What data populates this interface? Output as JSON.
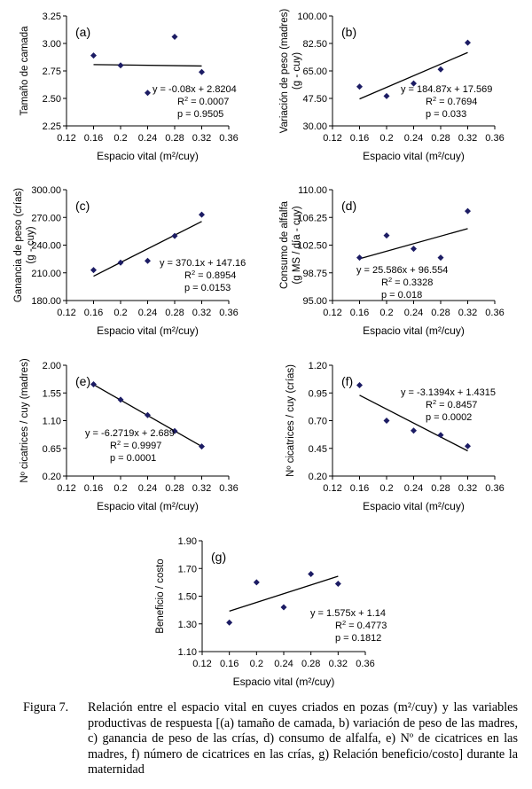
{
  "figure": {
    "caption_label": "Figura 7.",
    "caption_text": "Relación entre el espacio vital en cuyes criados en pozas (m²/cuy) y las variables productivas de respuesta [(a) tamaño de camada, b) variación de peso de las madres, c) ganancia de peso de las crías, d) consumo de alfalfa, e) Nº de cicatrices en las madres, f) número de cicatrices en las crías, g) Relación beneficio/costo] durante la maternidad"
  },
  "chart_data": [
    {
      "type": "scatter",
      "panel": "(a)",
      "ylabel": [
        "Tamaño de camada"
      ],
      "xlabel": "Espacio vital (m²/cuy)",
      "xlim": [
        0.12,
        0.36
      ],
      "xticks": [
        "0.12",
        "0.16",
        "0.2",
        "0.24",
        "0.28",
        "0.32",
        "0.36"
      ],
      "ylim": [
        2.25,
        3.25
      ],
      "yticks": [
        "2.25",
        "2.50",
        "2.75",
        "3.00",
        "3.25"
      ],
      "x": [
        0.16,
        0.2,
        0.24,
        0.28,
        0.32
      ],
      "y": [
        2.89,
        2.8,
        2.55,
        3.06,
        2.74
      ],
      "trend": {
        "slope": -0.08,
        "intercept": 2.8204
      },
      "annotation": [
        "y = -0.08x + 2.8204",
        "R2 = 0.0007",
        "p = 0.9505"
      ],
      "grid": false,
      "point_color": "#1c1c64"
    },
    {
      "type": "scatter",
      "panel": "(b)",
      "ylabel": [
        "Variación de peso (madres)",
        "(g - cuy)"
      ],
      "xlabel": "Espacio vital (m²/cuy)",
      "xlim": [
        0.12,
        0.36
      ],
      "xticks": [
        "0.12",
        "0.16",
        "0.2",
        "0.24",
        "0.28",
        "0.32",
        "0.36"
      ],
      "ylim": [
        30.0,
        100.0
      ],
      "yticks": [
        "30.00",
        "47.50",
        "65.00",
        "82.50",
        "100.00"
      ],
      "x": [
        0.16,
        0.2,
        0.24,
        0.28,
        0.32
      ],
      "y": [
        55,
        49,
        57,
        66,
        83
      ],
      "trend": {
        "slope": 184.87,
        "intercept": 17.569
      },
      "annotation": [
        "y = 184.87x + 17.569",
        "R2 = 0.7694",
        "p = 0.033"
      ],
      "grid": false,
      "point_color": "#1c1c64"
    },
    {
      "type": "scatter",
      "panel": "(c)",
      "ylabel": [
        "Ganancia de peso (crías)",
        "(g - cuy)"
      ],
      "xlabel": "Espacio vital (m²/cuy)",
      "xlim": [
        0.12,
        0.36
      ],
      "xticks": [
        "0.12",
        "0.16",
        "0.2",
        "0.24",
        "0.28",
        "0.32",
        "0.36"
      ],
      "ylim": [
        180.0,
        300.0
      ],
      "yticks": [
        "180.00",
        "210.00",
        "240.00",
        "270.00",
        "300.00"
      ],
      "x": [
        0.16,
        0.2,
        0.24,
        0.28,
        0.32
      ],
      "y": [
        213,
        221,
        223,
        250,
        273
      ],
      "trend": {
        "slope": 370.1,
        "intercept": 147.16
      },
      "annotation": [
        "y = 370.1x + 147.16",
        "R2 = 0.8954",
        "p = 0.0153"
      ],
      "grid": false,
      "point_color": "#1c1c64"
    },
    {
      "type": "scatter",
      "panel": "(d)",
      "ylabel": [
        "Consumo de alfalfa",
        "(g MS / día - cuy)"
      ],
      "xlabel": "Espacio vital (m²/cuy)",
      "xlim": [
        0.12,
        0.36
      ],
      "xticks": [
        "0.12",
        "0.16",
        "0.2",
        "0.24",
        "0.28",
        "0.32",
        "0.36"
      ],
      "ylim": [
        95.0,
        110.0
      ],
      "yticks": [
        "95.00",
        "98.75",
        "102.50",
        "106.25",
        "110.00"
      ],
      "x": [
        0.16,
        0.2,
        0.24,
        0.28,
        0.32
      ],
      "y": [
        100.8,
        103.8,
        102.0,
        100.8,
        107.1
      ],
      "trend": {
        "slope": 25.586,
        "intercept": 96.554
      },
      "annotation": [
        "y = 25.586x + 96.554",
        "R2 = 0.3328",
        "p = 0.018"
      ],
      "grid": false,
      "point_color": "#1c1c64"
    },
    {
      "type": "scatter",
      "panel": "(e)",
      "ylabel": [
        "Nº cicatrices / cuy (madres)"
      ],
      "xlabel": "Espacio vital (m²/cuy)",
      "xlim": [
        0.12,
        0.36
      ],
      "xticks": [
        "0.12",
        "0.16",
        "0.2",
        "0.24",
        "0.28",
        "0.32",
        "0.36"
      ],
      "ylim": [
        0.2,
        2.0
      ],
      "yticks": [
        "0.20",
        "0.65",
        "1.10",
        "1.55",
        "2.00"
      ],
      "x": [
        0.16,
        0.2,
        0.24,
        0.28,
        0.32
      ],
      "y": [
        1.69,
        1.44,
        1.19,
        0.93,
        0.68
      ],
      "trend": {
        "slope": -6.2719,
        "intercept": 2.689
      },
      "annotation": [
        "y = -6.2719x + 2.689",
        "R2 = 0.9997",
        "p = 0.0001"
      ],
      "grid": false,
      "point_color": "#1c1c64"
    },
    {
      "type": "scatter",
      "panel": "(f)",
      "ylabel": [
        "Nº cicatrices / cuy (crías)"
      ],
      "xlabel": "Espacio vital (m²/cuy)",
      "xlim": [
        0.12,
        0.36
      ],
      "xticks": [
        "0.12",
        "0.16",
        "0.2",
        "0.24",
        "0.28",
        "0.32",
        "0.36"
      ],
      "ylim": [
        0.2,
        1.2
      ],
      "yticks": [
        "0.20",
        "0.45",
        "0.70",
        "0.95",
        "1.20"
      ],
      "x": [
        0.16,
        0.2,
        0.24,
        0.28,
        0.32
      ],
      "y": [
        1.02,
        0.7,
        0.61,
        0.57,
        0.47
      ],
      "trend": {
        "slope": -3.1394,
        "intercept": 1.4315
      },
      "annotation": [
        "y = -3.1394x + 1.4315",
        "R2 = 0.8457",
        "p = 0.0002"
      ],
      "grid": false,
      "point_color": "#1c1c64"
    },
    {
      "type": "scatter",
      "panel": "(g)",
      "ylabel": [
        "Beneficio / costo"
      ],
      "xlabel": "Espacio vital (m²/cuy)",
      "xlim": [
        0.12,
        0.36
      ],
      "xticks": [
        "0.12",
        "0.16",
        "0.2",
        "0.24",
        "0.28",
        "0.32",
        "0.36"
      ],
      "ylim": [
        1.1,
        1.9
      ],
      "yticks": [
        "1.10",
        "1.30",
        "1.50",
        "1.70",
        "1.90"
      ],
      "x": [
        0.16,
        0.2,
        0.24,
        0.28,
        0.32
      ],
      "y": [
        1.31,
        1.6,
        1.42,
        1.66,
        1.59
      ],
      "trend": {
        "slope": 1.575,
        "intercept": 1.14
      },
      "annotation": [
        "y = 1.575x + 1.14",
        "R2 = 0.4773",
        "p = 0.1812"
      ],
      "grid": false,
      "point_color": "#1c1c64"
    }
  ]
}
